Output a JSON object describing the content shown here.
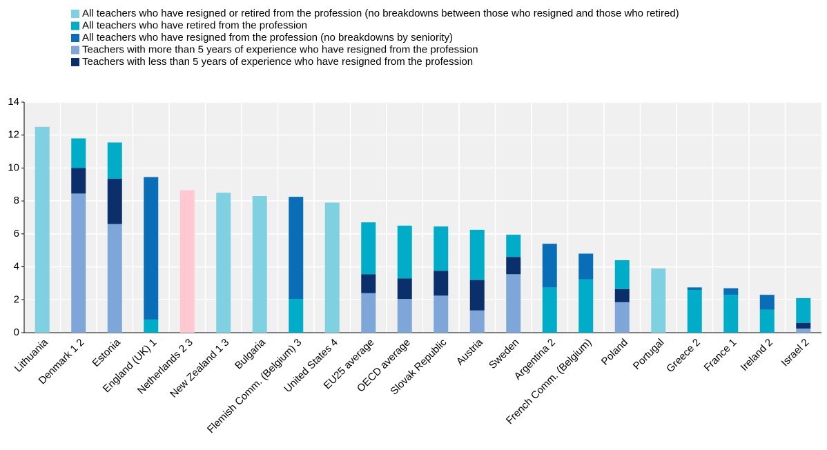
{
  "chart_data": {
    "type": "stacked_bar",
    "categories": [
      "Lithuania",
      "Denmark 1 2",
      "Estonia",
      "England (UK) 1",
      "Netherlands 2 3",
      "New Zealand 1 3",
      "Bulgaria",
      "Flemish Comm. (Belgium) 3",
      "United States 4",
      "EU25 average",
      "OECD average",
      "Slovak Republic",
      "Austria",
      "Sweden",
      "Argentina 2",
      "French Comm. (Belgium)",
      "Poland",
      "Portugal",
      "Greece 2",
      "France 1",
      "Ireland 2",
      "Israel 2"
    ],
    "series": [
      {
        "name": "All teachers who have resigned or retired from the profession (no breakdowns between those who resigned and those who retired)",
        "color": "#7fd1e1",
        "point_colors": [
          null,
          null,
          null,
          null,
          "#ffc8d3",
          null,
          null,
          null,
          null,
          null,
          null,
          null,
          null,
          null,
          null,
          null,
          null,
          null,
          null,
          null,
          null,
          null
        ],
        "values": [
          12.5,
          null,
          null,
          null,
          8.65,
          8.5,
          8.3,
          null,
          7.9,
          null,
          null,
          null,
          null,
          null,
          null,
          null,
          null,
          3.9,
          null,
          null,
          null,
          null
        ]
      },
      {
        "name": "All teachers who have retired from the profession",
        "color": "#00acc8",
        "values": [
          null,
          1.8,
          2.2,
          0.8,
          null,
          null,
          null,
          2.05,
          null,
          3.15,
          3.2,
          2.7,
          3.05,
          1.35,
          2.75,
          3.25,
          1.75,
          null,
          2.6,
          2.3,
          1.4,
          1.5
        ]
      },
      {
        "name": "All teachers who have resigned from the profession (no breakdowns by seniority)",
        "color": "#0a6db7",
        "values": [
          null,
          null,
          null,
          8.65,
          null,
          null,
          null,
          6.2,
          null,
          null,
          null,
          null,
          null,
          null,
          2.65,
          1.55,
          null,
          null,
          0.15,
          0.4,
          0.9,
          null
        ]
      },
      {
        "name": "Teachers with more than 5 years of experience who have resigned from the profession",
        "color": "#7fa6d9",
        "values": [
          null,
          8.45,
          6.6,
          null,
          null,
          null,
          null,
          null,
          null,
          2.4,
          2.05,
          2.25,
          1.35,
          3.55,
          null,
          null,
          1.85,
          null,
          null,
          null,
          null,
          0.25
        ]
      },
      {
        "name": "Teachers with less than 5 years of experience who have resigned from the profession",
        "color": "#0b2f6a",
        "values": [
          null,
          1.55,
          2.75,
          null,
          null,
          null,
          null,
          null,
          null,
          1.15,
          1.25,
          1.5,
          1.85,
          1.05,
          null,
          null,
          0.8,
          null,
          null,
          null,
          null,
          0.35
        ]
      }
    ],
    "ylim": [
      0,
      14
    ],
    "yticks": [
      0,
      2,
      4,
      6,
      8,
      10,
      12,
      14
    ],
    "grid": true
  }
}
